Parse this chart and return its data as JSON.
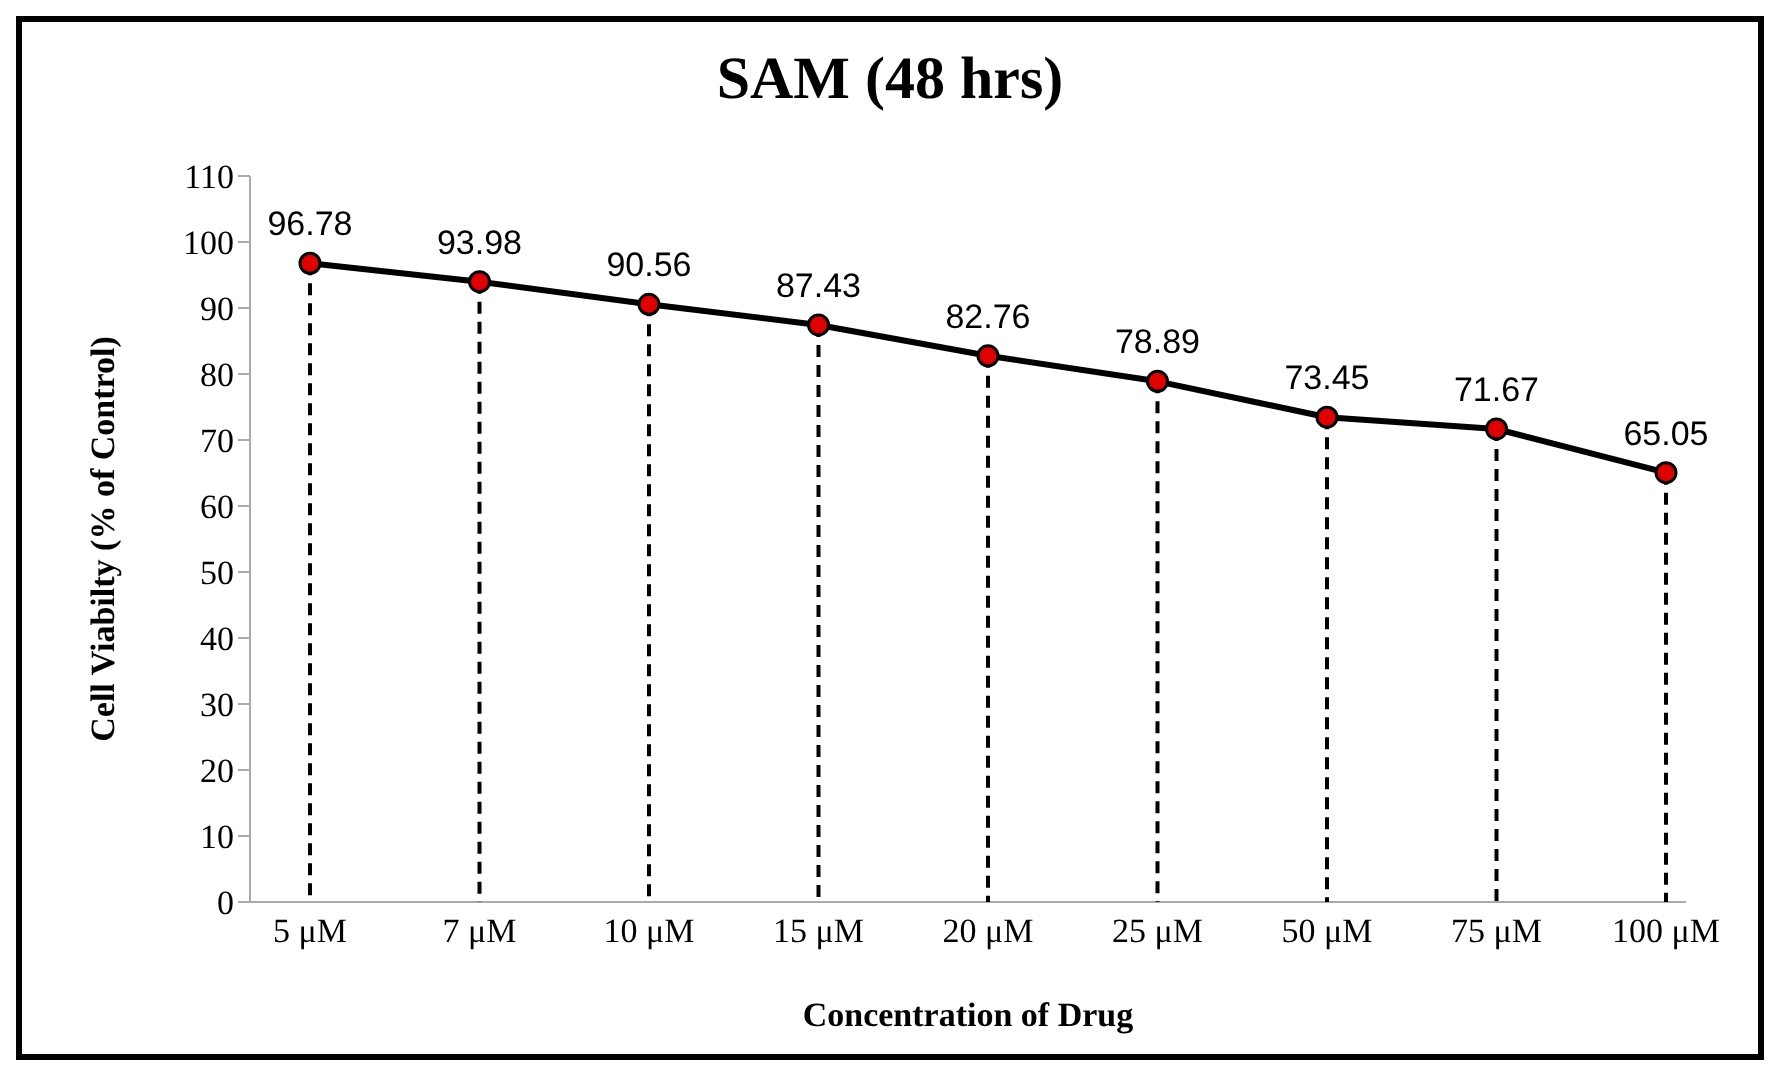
{
  "chart_data": {
    "type": "line",
    "title": "SAM (48 hrs)",
    "xlabel": "Concentration of Drug",
    "ylabel": "Cell Viabilty (% of Control)",
    "categories": [
      "5 μM",
      "7 μM",
      "10 μM",
      "15 μM",
      "20 μM",
      "25 μM",
      "50 μM",
      "75 μM",
      "100 μM"
    ],
    "series": [
      {
        "color": "#000000",
        "values": [
          96.78,
          93.98,
          90.56,
          87.43,
          82.76,
          78.89,
          73.45,
          71.67,
          65.05
        ]
      }
    ],
    "ylim": [
      0,
      110
    ],
    "yticks": [
      0,
      10,
      20,
      30,
      40,
      50,
      60,
      70,
      80,
      90,
      100,
      110
    ],
    "grid": "x",
    "marker": "circle",
    "line_style": "solid",
    "data_labels": true
  }
}
